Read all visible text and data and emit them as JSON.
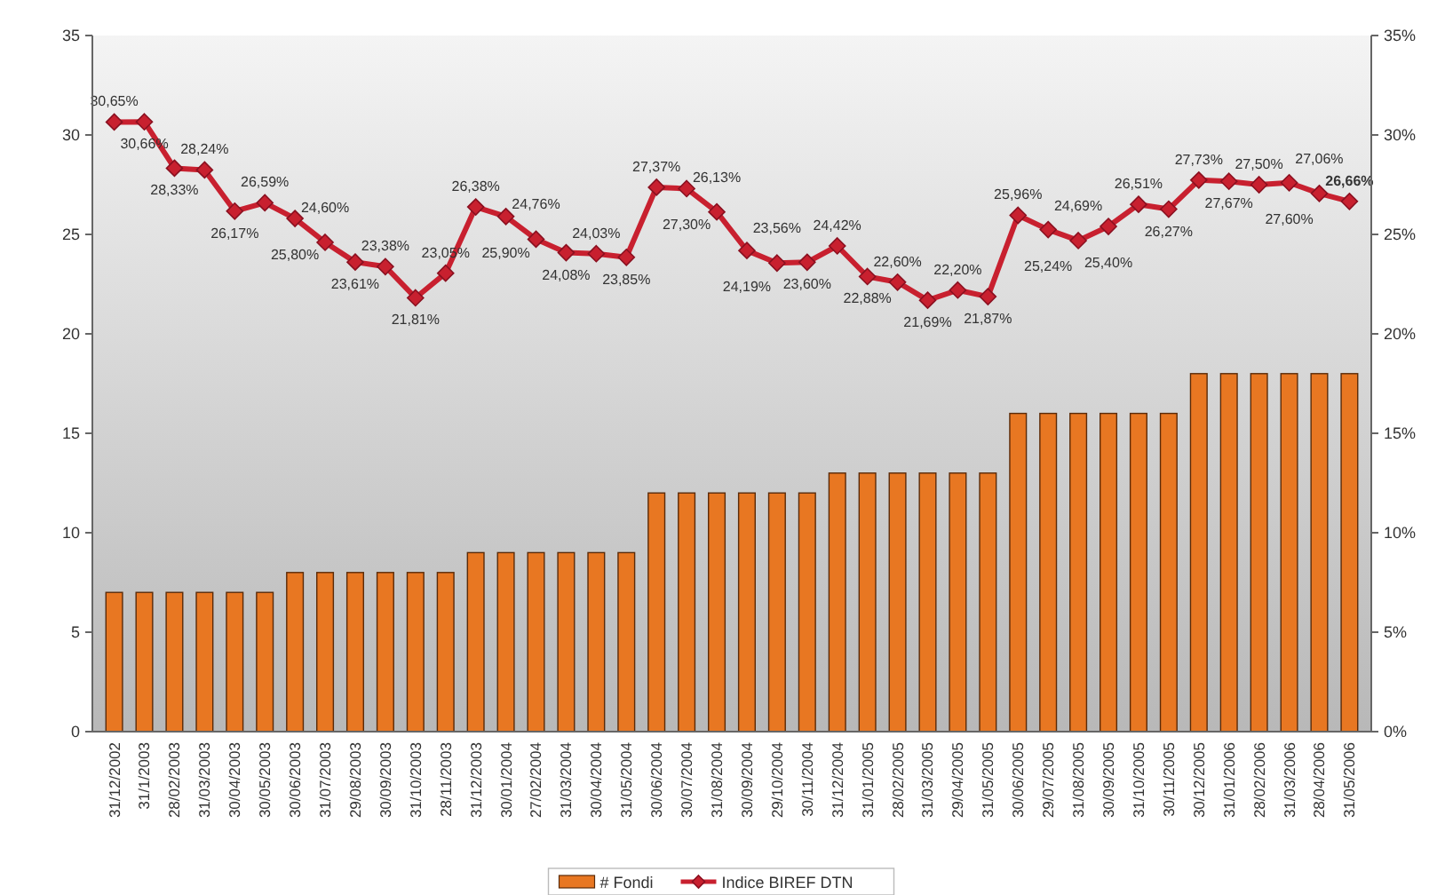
{
  "chart_data": {
    "type": "bar",
    "categories": [
      "31/12/2002",
      "31/1/2003",
      "28/02/2003",
      "31/03/2003",
      "30/04/2003",
      "30/05/2003",
      "30/06/2003",
      "31/07/2003",
      "29/08/2003",
      "30/09/2003",
      "31/10/2003",
      "28/11/2003",
      "31/12/2003",
      "30/01/2004",
      "27/02/2004",
      "31/03/2004",
      "30/04/2004",
      "31/05/2004",
      "30/06/2004",
      "30/07/2004",
      "31/08/2004",
      "30/09/2004",
      "29/10/2004",
      "30/11/2004",
      "31/12/2004",
      "31/01/2005",
      "28/02/2005",
      "31/03/2005",
      "29/04/2005",
      "31/05/2005",
      "30/06/2005",
      "29/07/2005",
      "31/08/2005",
      "30/09/2005",
      "31/10/2005",
      "30/11/2005",
      "30/12/2005",
      "31/01/2006",
      "28/02/2006",
      "31/03/2006",
      "28/04/2006",
      "31/05/2006"
    ],
    "series": [
      {
        "name": "# Fondi",
        "color": "#e87722",
        "values": [
          7,
          7,
          7,
          7,
          7,
          7,
          8,
          8,
          8,
          8,
          8,
          8,
          9,
          9,
          9,
          9,
          9,
          9,
          12,
          12,
          12,
          12,
          12,
          12,
          13,
          13,
          13,
          13,
          13,
          13,
          16,
          16,
          16,
          16,
          16,
          16,
          18,
          18,
          18,
          18,
          18,
          18
        ]
      },
      {
        "name": "Indice BIREF DTN",
        "type": "line",
        "axis": "y2",
        "color": "#c8202f",
        "marker": "diamond",
        "values": [
          30.65,
          30.66,
          28.33,
          28.24,
          26.17,
          26.59,
          25.8,
          24.6,
          23.61,
          23.38,
          21.81,
          23.05,
          26.38,
          25.9,
          24.76,
          24.08,
          24.03,
          23.85,
          27.37,
          27.3,
          26.13,
          24.19,
          23.56,
          23.6,
          24.42,
          22.88,
          22.6,
          21.69,
          22.2,
          21.87,
          25.96,
          25.24,
          24.69,
          25.4,
          26.51,
          26.27,
          27.73,
          27.67,
          27.5,
          27.6,
          27.06,
          26.66
        ],
        "value_labels": [
          "30,65%",
          "30,66%",
          "28,33%",
          "28,24%",
          "26,17%",
          "26,59%",
          "25,80%",
          "24,60%",
          "23,61%",
          "23,38%",
          "21,81%",
          "23,05%",
          "26,38%",
          "25,90%",
          "24,76%",
          "24,08%",
          "24,03%",
          "23,85%",
          "27,37%",
          "27,30%",
          "26,13%",
          "24,19%",
          "23,56%",
          "23,60%",
          "24,42%",
          "22,88%",
          "22,60%",
          "21,69%",
          "22,20%",
          "21,87%",
          "25,96%",
          "25,24%",
          "24,69%",
          "25,40%",
          "26,51%",
          "26,27%",
          "27,73%",
          "27,67%",
          "27,50%",
          "27,60%",
          "27,06%",
          "26,66%"
        ]
      }
    ],
    "ylim": [
      0,
      35
    ],
    "yticks": [
      0,
      5,
      10,
      15,
      20,
      25,
      30,
      35
    ],
    "y2lim": [
      0,
      35
    ],
    "y2ticks": [
      {
        "value": 0,
        "label": "0%"
      },
      {
        "value": 5,
        "label": "5%"
      },
      {
        "value": 10,
        "label": "10%"
      },
      {
        "value": 15,
        "label": "15%"
      },
      {
        "value": 20,
        "label": "20%"
      },
      {
        "value": 25,
        "label": "25%"
      },
      {
        "value": 30,
        "label": "30%"
      },
      {
        "value": 35,
        "label": "35%"
      }
    ],
    "grid": false,
    "legend": "bottom"
  }
}
